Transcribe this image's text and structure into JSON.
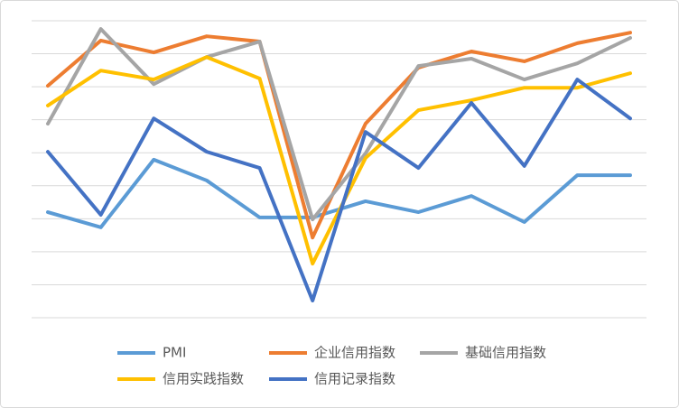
{
  "chart_data": {
    "type": "line",
    "categories": [
      null,
      null,
      null,
      null,
      null,
      null,
      null,
      null,
      null,
      null,
      null,
      null
    ],
    "series": [
      {
        "name": "PMI",
        "color": "#5b9bd5",
        "values": [
          3.2,
          2.74,
          4.79,
          4.16,
          3.04,
          3.04,
          3.53,
          3.2,
          3.69,
          2.9,
          4.32,
          4.32
        ]
      },
      {
        "name": "企业信用指数",
        "color": "#ed7d31",
        "values": [
          7.03,
          8.4,
          8.04,
          8.53,
          8.37,
          2.43,
          5.88,
          7.58,
          8.07,
          7.77,
          8.32,
          8.64
        ]
      },
      {
        "name": "基础信用指数",
        "color": "#a5a5a5",
        "values": [
          5.88,
          8.75,
          7.08,
          7.9,
          8.37,
          2.98,
          4.98,
          7.63,
          7.85,
          7.22,
          7.71,
          8.48
        ]
      },
      {
        "name": "信用实践指数",
        "color": "#ffc000",
        "values": [
          6.43,
          7.49,
          7.22,
          7.9,
          7.25,
          1.64,
          4.84,
          6.29,
          6.59,
          6.97,
          6.97,
          7.41
        ]
      },
      {
        "name": "信用记录指数",
        "color": "#4472c4",
        "values": [
          5.03,
          3.12,
          6.04,
          5.03,
          4.54,
          0.52,
          5.63,
          4.54,
          6.51,
          4.6,
          7.22,
          6.04
        ]
      }
    ],
    "ylim": [
      0,
      9
    ],
    "yticks": [
      0,
      1,
      2,
      3,
      4,
      5,
      6,
      7,
      8,
      9
    ],
    "grid": true,
    "tick_labels": false,
    "legend": "bottom"
  }
}
